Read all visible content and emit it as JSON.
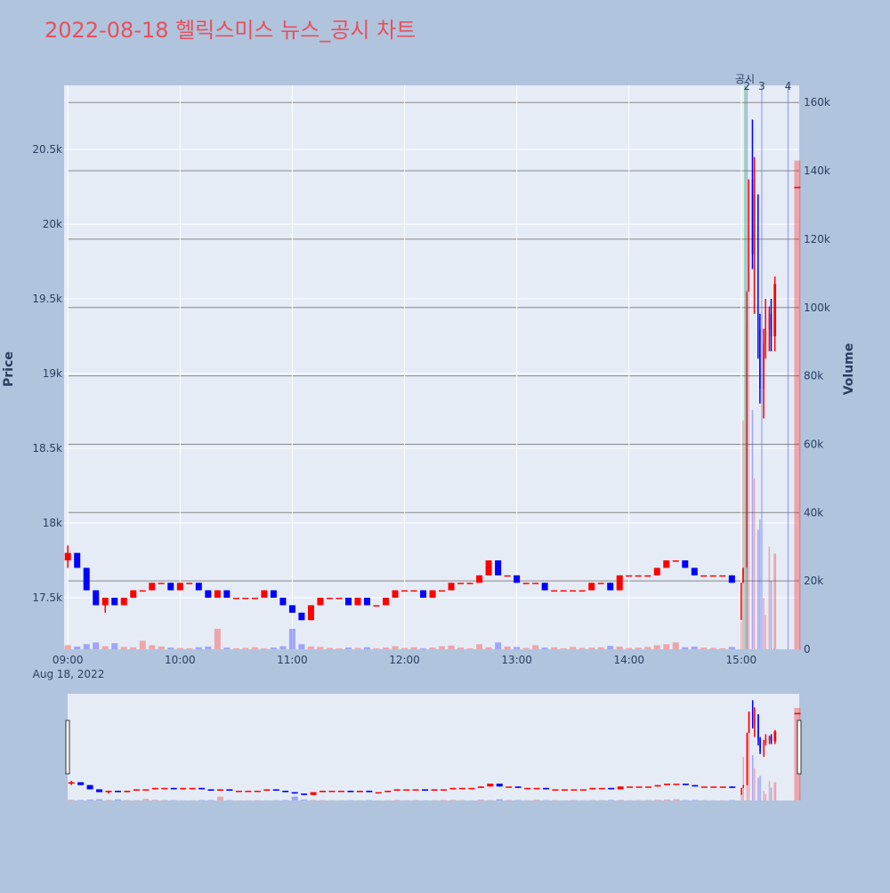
{
  "chart_data": {
    "type": "candlestick",
    "title": "2022-08-18 헬릭스미스 뉴스_공시 차트",
    "y_title": "Price",
    "y2_title": "Volume",
    "x_sublabel": "Aug 18, 2022",
    "x": [
      "09:00",
      "09:05",
      "09:10",
      "09:15",
      "09:20",
      "09:25",
      "09:30",
      "09:35",
      "09:40",
      "09:45",
      "09:50",
      "09:55",
      "10:00",
      "10:05",
      "10:10",
      "10:15",
      "10:20",
      "10:25",
      "10:30",
      "10:35",
      "10:40",
      "10:45",
      "10:50",
      "10:55",
      "11:00",
      "11:05",
      "11:10",
      "11:15",
      "11:20",
      "11:25",
      "11:30",
      "11:35",
      "11:40",
      "11:45",
      "11:50",
      "11:55",
      "12:00",
      "12:05",
      "12:10",
      "12:15",
      "12:20",
      "12:25",
      "12:30",
      "12:35",
      "12:40",
      "12:45",
      "12:50",
      "12:55",
      "13:00",
      "13:05",
      "13:10",
      "13:15",
      "13:20",
      "13:25",
      "13:30",
      "13:35",
      "13:40",
      "13:45",
      "13:50",
      "13:55",
      "14:00",
      "14:05",
      "14:10",
      "14:15",
      "14:20",
      "14:25",
      "14:30",
      "14:35",
      "14:40",
      "14:45",
      "14:50",
      "14:55",
      "15:00",
      "15:01",
      "15:03",
      "15:04",
      "15:06",
      "15:07",
      "15:09",
      "15:10",
      "15:12",
      "15:13",
      "15:15",
      "15:16",
      "15:18",
      "15:30"
    ],
    "open": [
      17750,
      17800,
      17700,
      17550,
      17450,
      17500,
      17450,
      17500,
      17550,
      17550,
      17600,
      17600,
      17550,
      17600,
      17600,
      17550,
      17500,
      17550,
      17500,
      17500,
      17500,
      17500,
      17550,
      17500,
      17450,
      17400,
      17350,
      17450,
      17500,
      17500,
      17500,
      17450,
      17500,
      17450,
      17450,
      17500,
      17550,
      17550,
      17550,
      17500,
      17550,
      17550,
      17600,
      17600,
      17600,
      17650,
      17750,
      17650,
      17650,
      17600,
      17600,
      17600,
      17550,
      17550,
      17550,
      17550,
      17550,
      17600,
      17600,
      17550,
      17650,
      17650,
      17650,
      17650,
      17700,
      17750,
      17750,
      17700,
      17650,
      17650,
      17650,
      17650,
      17600,
      17600,
      17700,
      19550,
      20300,
      19800,
      20200,
      19300,
      18900,
      19200,
      19300,
      19400,
      19250,
      20250
    ],
    "high": [
      17850,
      17800,
      17700,
      17550,
      17500,
      17500,
      17500,
      17550,
      17550,
      17600,
      17600,
      17600,
      17600,
      17600,
      17600,
      17550,
      17550,
      17550,
      17500,
      17500,
      17500,
      17550,
      17550,
      17500,
      17450,
      17400,
      17450,
      17500,
      17500,
      17500,
      17500,
      17500,
      17500,
      17450,
      17500,
      17550,
      17550,
      17550,
      17550,
      17550,
      17550,
      17600,
      17600,
      17600,
      17650,
      17750,
      17750,
      17650,
      17650,
      17600,
      17600,
      17600,
      17550,
      17550,
      17550,
      17550,
      17600,
      17600,
      17600,
      17650,
      17650,
      17650,
      17650,
      17700,
      17750,
      17750,
      17750,
      17700,
      17650,
      17650,
      17650,
      17650,
      17600,
      17700,
      19550,
      20300,
      20700,
      20450,
      20200,
      19400,
      19300,
      19500,
      19450,
      19500,
      19650,
      20250
    ],
    "low": [
      17700,
      17700,
      17550,
      17450,
      17400,
      17450,
      17450,
      17500,
      17550,
      17550,
      17600,
      17550,
      17550,
      17600,
      17550,
      17500,
      17500,
      17500,
      17500,
      17500,
      17500,
      17500,
      17500,
      17450,
      17400,
      17350,
      17350,
      17450,
      17500,
      17500,
      17450,
      17450,
      17450,
      17450,
      17450,
      17500,
      17550,
      17550,
      17500,
      17500,
      17550,
      17550,
      17600,
      17600,
      17600,
      17650,
      17650,
      17650,
      17600,
      17600,
      17600,
      17550,
      17550,
      17550,
      17550,
      17550,
      17550,
      17600,
      17550,
      17550,
      17650,
      17650,
      17650,
      17650,
      17700,
      17750,
      17700,
      17650,
      17650,
      17650,
      17650,
      17600,
      17350,
      17600,
      17700,
      19550,
      19700,
      19400,
      19100,
      18800,
      18700,
      19100,
      19150,
      19150,
      19150,
      20250
    ],
    "close": [
      17800,
      17700,
      17550,
      17450,
      17500,
      17450,
      17500,
      17550,
      17550,
      17600,
      17600,
      17550,
      17600,
      17600,
      17550,
      17500,
      17550,
      17500,
      17500,
      17500,
      17500,
      17550,
      17500,
      17450,
      17400,
      17350,
      17450,
      17500,
      17500,
      17500,
      17450,
      17500,
      17450,
      17450,
      17500,
      17550,
      17550,
      17550,
      17500,
      17550,
      17550,
      17600,
      17600,
      17600,
      17650,
      17750,
      17650,
      17650,
      17600,
      17600,
      17600,
      17550,
      17550,
      17550,
      17550,
      17550,
      17600,
      17600,
      17550,
      17650,
      17650,
      17650,
      17650,
      17700,
      17750,
      17750,
      17700,
      17650,
      17650,
      17650,
      17650,
      17600,
      17600,
      17700,
      19550,
      20300,
      19800,
      20200,
      19300,
      18900,
      19200,
      19300,
      19400,
      19250,
      19600,
      20250
    ],
    "volume": [
      1200,
      800,
      1500,
      2000,
      900,
      1800,
      700,
      600,
      2500,
      1200,
      800,
      500,
      400,
      300,
      600,
      800,
      6000,
      500,
      300,
      400,
      600,
      300,
      500,
      900,
      6000,
      1500,
      800,
      700,
      400,
      300,
      500,
      400,
      600,
      300,
      500,
      900,
      400,
      600,
      300,
      500,
      900,
      1100,
      500,
      300,
      1500,
      600,
      2000,
      800,
      700,
      400,
      1200,
      500,
      600,
      300,
      700,
      400,
      500,
      600,
      1000,
      800,
      400,
      500,
      700,
      1200,
      1500,
      2000,
      600,
      800,
      500,
      400,
      300,
      700,
      8000,
      67000,
      95000,
      105000,
      70000,
      50000,
      35000,
      38000,
      15000,
      10000,
      30000,
      20000,
      28000,
      143000
    ],
    "up_color": "#ff0000",
    "down_color": "#0000ff",
    "xlim": [
      "08:58",
      "15:31"
    ],
    "xticks": [
      "09:00",
      "10:00",
      "11:00",
      "12:00",
      "13:00",
      "14:00",
      "15:00"
    ],
    "ylim": [
      17155,
      20929
    ],
    "yticks": [
      {
        "value": 17500,
        "label": "17.5k"
      },
      {
        "value": 18000,
        "label": "18k"
      },
      {
        "value": 18500,
        "label": "18.5k"
      },
      {
        "value": 19000,
        "label": "19k"
      },
      {
        "value": 19500,
        "label": "19.5k"
      },
      {
        "value": 20000,
        "label": "20k"
      },
      {
        "value": 20500,
        "label": "20.5k"
      }
    ],
    "y2lim": [
      0,
      165000
    ],
    "y2ticks": [
      0,
      {
        "value": 20000,
        "label": "20k"
      },
      {
        "value": 40000,
        "label": "40k"
      },
      {
        "value": 60000,
        "label": "60k"
      },
      {
        "value": 80000,
        "label": "80k"
      },
      {
        "value": 100000,
        "label": "100k"
      },
      {
        "value": 120000,
        "label": "120k"
      },
      {
        "value": 140000,
        "label": "140k"
      },
      {
        "value": 160000,
        "label": "160k"
      }
    ],
    "events": [
      {
        "label": "공시",
        "time": "15:02",
        "color": "#2ca02c"
      },
      {
        "label": "2",
        "time": "15:03",
        "color": "#1f77b4"
      },
      {
        "label": "3",
        "time": "15:11",
        "color": "#636efa"
      },
      {
        "label": "4",
        "time": "15:25",
        "color": "#636efa"
      }
    ],
    "grid": true
  }
}
